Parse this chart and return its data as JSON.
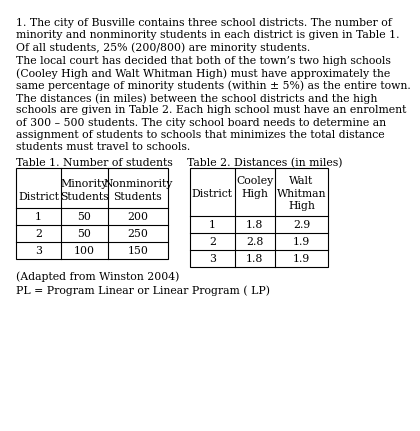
{
  "paragraph1_lines": [
    "1. The city of Busville contains three school districts. The number of",
    "minority and nonminority students in each district is given in Table 1.",
    "Of all students, 25% (200/800) are minority students."
  ],
  "paragraph2_lines": [
    "The local court has decided that both of the town’s two high schools",
    "(Cooley High and Walt Whitman High) must have approximately the",
    "same percentage of minority students (within ± 5%) as the entire town.",
    "The distances (in miles) between the school districts and the high",
    "schools are given in Table 2. Each high school must have an enrolment",
    "of 300 – 500 students. The city school board needs to determine an",
    "assignment of students to schools that minimizes the total distance",
    "students must travel to schools."
  ],
  "table1_title": "Table 1. Number of students",
  "table2_title": "Table 2. Distances (in miles)",
  "table1_header_row1": [
    "",
    "Minority",
    "Nonminority"
  ],
  "table1_header_row2": [
    "District",
    "Students",
    "Students"
  ],
  "table1_data": [
    [
      "1",
      "50",
      "200"
    ],
    [
      "2",
      "50",
      "250"
    ],
    [
      "3",
      "100",
      "150"
    ]
  ],
  "table2_header_row1": [
    "",
    "Cooley",
    "Walt"
  ],
  "table2_header_row2": [
    "District",
    "High",
    "Whitman"
  ],
  "table2_header_row3": [
    "",
    "",
    "High"
  ],
  "table2_data": [
    [
      "1",
      "1.8",
      "2.9"
    ],
    [
      "2",
      "2.8",
      "1.9"
    ],
    [
      "3",
      "1.8",
      "1.9"
    ]
  ],
  "footnote": "(Adapted from Winston 2004)",
  "pl_note": "PL = Program Linear or Linear Program ( LP)",
  "bg_color": "#ffffff",
  "text_color": "#000000",
  "font_size": 7.8,
  "font_family": "DejaVu Serif"
}
